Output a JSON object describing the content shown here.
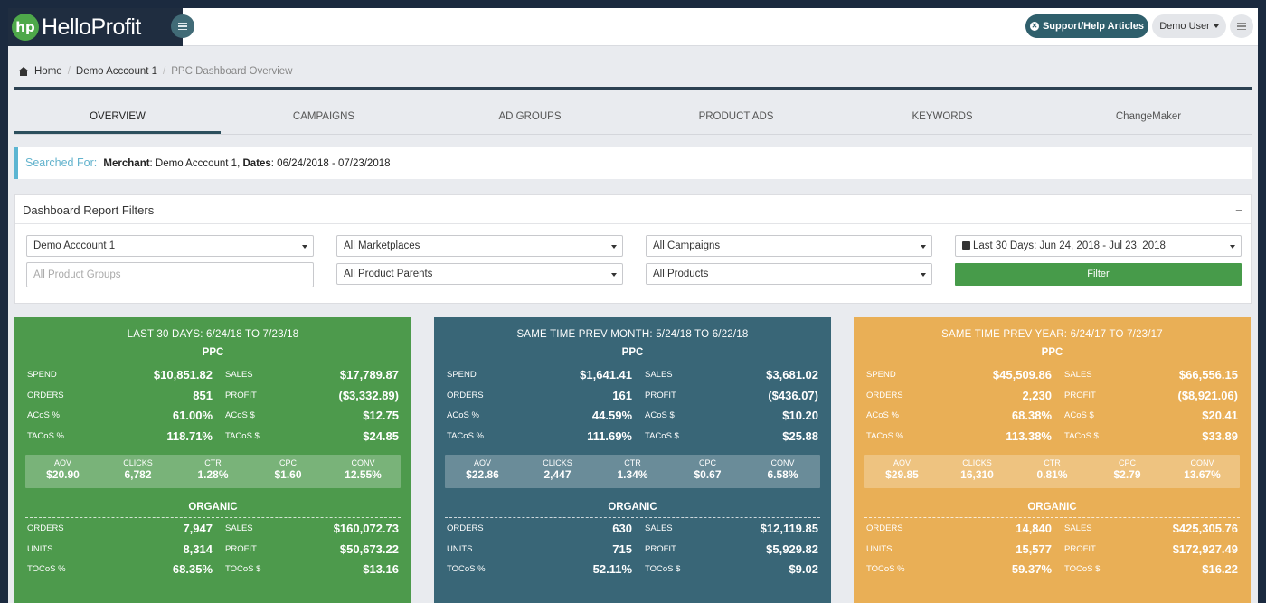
{
  "topbar": {
    "logo_mark": "hp",
    "logo_text": "HelloProfit",
    "support_label": "Support/Help Articles",
    "user_label": "Demo User"
  },
  "breadcrumb": {
    "home": "Home",
    "account": "Demo Acccount 1",
    "current": "PPC Dashboard Overview"
  },
  "tabs": [
    "OVERVIEW",
    "CAMPAIGNS",
    "AD GROUPS",
    "PRODUCT ADS",
    "KEYWORDS",
    "ChangeMaker"
  ],
  "searched": {
    "label": "Searched For:",
    "merchant_key": "Merchant",
    "merchant_value": ": Demo Acccount 1, ",
    "dates_key": "Dates",
    "dates_value": ": 06/24/2018 - 07/23/2018"
  },
  "filters": {
    "title": "Dashboard Report Filters",
    "collapse": "–",
    "account": "Demo Acccount 1",
    "product_groups_placeholder": "All Product Groups",
    "marketplaces": "All Marketplaces",
    "product_parents": "All Product Parents",
    "campaigns": "All Campaigns",
    "products": "All Products",
    "date_range": "Last 30 Days: Jun 24, 2018 - Jul 23, 2018",
    "filter_button": "Filter"
  },
  "colors": {
    "green": "#4d9a4c",
    "teal": "#396677",
    "orange": "#e9af56",
    "navy": "#1f2d40"
  },
  "cards": [
    {
      "title": "LAST 30 DAYS: 6/24/18 TO 7/23/18",
      "ppc_title": "PPC",
      "ppc_rows": [
        {
          "l1": "SPEND",
          "v1": "$10,851.82",
          "l2": "SALES",
          "v2": "$17,789.87"
        },
        {
          "l1": "ORDERS",
          "v1": "851",
          "l2": "PROFIT",
          "v2": "($3,332.89)"
        },
        {
          "l1": "ACoS %",
          "v1": "61.00%",
          "l2": "ACoS $",
          "v2": "$12.75"
        },
        {
          "l1": "TACoS %",
          "v1": "118.71%",
          "l2": "TACoS $",
          "v2": "$24.85"
        }
      ],
      "stats": [
        {
          "label": "AOV",
          "value": "$20.90"
        },
        {
          "label": "CLICKS",
          "value": "6,782"
        },
        {
          "label": "CTR",
          "value": "1.28%"
        },
        {
          "label": "CPC",
          "value": "$1.60"
        },
        {
          "label": "CONV",
          "value": "12.55%"
        }
      ],
      "organic_title": "ORGANIC",
      "organic_rows": [
        {
          "l1": "ORDERS",
          "v1": "7,947",
          "l2": "SALES",
          "v2": "$160,072.73"
        },
        {
          "l1": "UNITS",
          "v1": "8,314",
          "l2": "PROFIT",
          "v2": "$50,673.22"
        },
        {
          "l1": "TOCoS %",
          "v1": "68.35%",
          "l2": "TOCoS $",
          "v2": "$13.16"
        }
      ]
    },
    {
      "title": "SAME TIME PREV MONTH: 5/24/18 TO 6/22/18",
      "ppc_title": "PPC",
      "ppc_rows": [
        {
          "l1": "SPEND",
          "v1": "$1,641.41",
          "l2": "SALES",
          "v2": "$3,681.02"
        },
        {
          "l1": "ORDERS",
          "v1": "161",
          "l2": "PROFIT",
          "v2": "($436.07)"
        },
        {
          "l1": "ACoS %",
          "v1": "44.59%",
          "l2": "ACoS $",
          "v2": "$10.20"
        },
        {
          "l1": "TACoS %",
          "v1": "111.69%",
          "l2": "TACoS $",
          "v2": "$25.88"
        }
      ],
      "stats": [
        {
          "label": "AOV",
          "value": "$22.86"
        },
        {
          "label": "CLICKS",
          "value": "2,447"
        },
        {
          "label": "CTR",
          "value": "1.34%"
        },
        {
          "label": "CPC",
          "value": "$0.67"
        },
        {
          "label": "CONV",
          "value": "6.58%"
        }
      ],
      "organic_title": "ORGANIC",
      "organic_rows": [
        {
          "l1": "ORDERS",
          "v1": "630",
          "l2": "SALES",
          "v2": "$12,119.85"
        },
        {
          "l1": "UNITS",
          "v1": "715",
          "l2": "PROFIT",
          "v2": "$5,929.82"
        },
        {
          "l1": "TOCoS %",
          "v1": "52.11%",
          "l2": "TOCoS $",
          "v2": "$9.02"
        }
      ]
    },
    {
      "title": "SAME TIME PREV YEAR: 6/24/17 TO 7/23/17",
      "ppc_title": "PPC",
      "ppc_rows": [
        {
          "l1": "SPEND",
          "v1": "$45,509.86",
          "l2": "SALES",
          "v2": "$66,556.15"
        },
        {
          "l1": "ORDERS",
          "v1": "2,230",
          "l2": "PROFIT",
          "v2": "($8,921.06)"
        },
        {
          "l1": "ACoS %",
          "v1": "68.38%",
          "l2": "ACoS $",
          "v2": "$20.41"
        },
        {
          "l1": "TACoS %",
          "v1": "113.38%",
          "l2": "TACoS $",
          "v2": "$33.89"
        }
      ],
      "stats": [
        {
          "label": "AOV",
          "value": "$29.85"
        },
        {
          "label": "CLICKS",
          "value": "16,310"
        },
        {
          "label": "CTR",
          "value": "0.81%"
        },
        {
          "label": "CPC",
          "value": "$2.79"
        },
        {
          "label": "CONV",
          "value": "13.67%"
        }
      ],
      "organic_title": "ORGANIC",
      "organic_rows": [
        {
          "l1": "ORDERS",
          "v1": "14,840",
          "l2": "SALES",
          "v2": "$425,305.76"
        },
        {
          "l1": "UNITS",
          "v1": "15,577",
          "l2": "PROFIT",
          "v2": "$172,927.49"
        },
        {
          "l1": "TOCoS %",
          "v1": "59.37%",
          "l2": "TOCoS $",
          "v2": "$16.22"
        }
      ]
    }
  ]
}
